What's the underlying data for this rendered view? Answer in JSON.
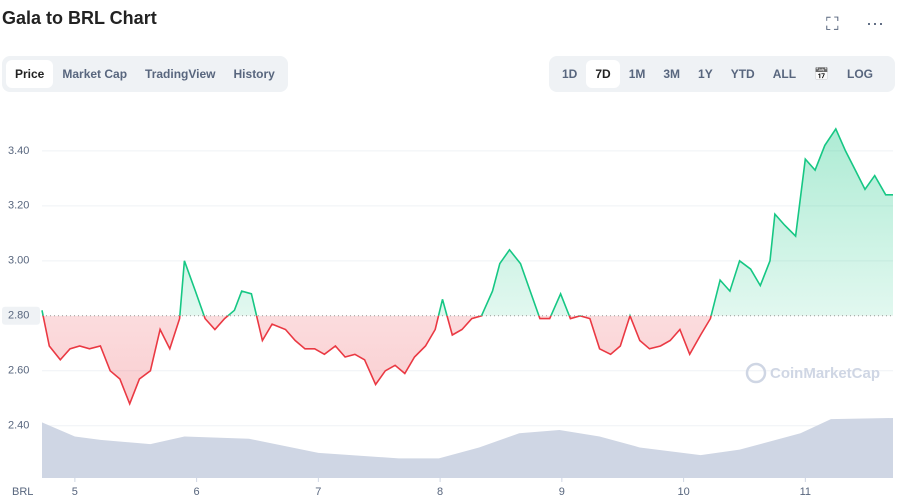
{
  "ui": {
    "tabs": [
      "Price",
      "Market Cap",
      "TradingView",
      "History"
    ],
    "ranges": [
      "1D",
      "7D",
      "1M",
      "3M",
      "1Y",
      "YTD",
      "ALL"
    ],
    "log": "LOG",
    "watermark": "CoinMarketCap"
  },
  "chart_data": {
    "type": "line",
    "title": "Gala to BRL Chart",
    "x_label": "BRL",
    "x": [
      4.73,
      4.79,
      4.88,
      4.96,
      5.04,
      5.12,
      5.21,
      5.29,
      5.37,
      5.45,
      5.53,
      5.62,
      5.7,
      5.78,
      5.86,
      5.9,
      5.99,
      6.07,
      6.15,
      6.23,
      6.31,
      6.37,
      6.45,
      6.54,
      6.62,
      6.73,
      6.81,
      6.89,
      6.97,
      7.05,
      7.14,
      7.22,
      7.3,
      7.38,
      7.47,
      7.55,
      7.63,
      7.71,
      7.79,
      7.88,
      7.96,
      8.02,
      8.1,
      8.18,
      8.26,
      8.34,
      8.43,
      8.49,
      8.57,
      8.66,
      8.74,
      8.82,
      8.9,
      8.99,
      9.07,
      9.15,
      9.23,
      9.31,
      9.4,
      9.48,
      9.56,
      9.64,
      9.72,
      9.81,
      9.89,
      9.97,
      10.05,
      10.14,
      10.22,
      10.3,
      10.38,
      10.46,
      10.55,
      10.63,
      10.71,
      10.75,
      10.83,
      10.92,
      11.0,
      11.08,
      11.16,
      11.25,
      11.33,
      11.41,
      11.49,
      11.57,
      11.66,
      11.72
    ],
    "series": [
      {
        "name": "Price",
        "color_up": "#16c784",
        "color_down": "#ea3943",
        "values": [
          2.82,
          2.69,
          2.64,
          2.68,
          2.69,
          2.68,
          2.69,
          2.6,
          2.57,
          2.48,
          2.57,
          2.6,
          2.75,
          2.68,
          2.79,
          3.0,
          2.89,
          2.79,
          2.75,
          2.79,
          2.82,
          2.89,
          2.88,
          2.71,
          2.77,
          2.75,
          2.71,
          2.68,
          2.68,
          2.66,
          2.69,
          2.65,
          2.66,
          2.64,
          2.55,
          2.6,
          2.62,
          2.59,
          2.65,
          2.69,
          2.75,
          2.86,
          2.73,
          2.75,
          2.79,
          2.8,
          2.89,
          2.99,
          3.04,
          2.99,
          2.89,
          2.79,
          2.79,
          2.88,
          2.79,
          2.8,
          2.79,
          2.68,
          2.66,
          2.69,
          2.8,
          2.71,
          2.68,
          2.69,
          2.71,
          2.75,
          2.66,
          2.73,
          2.79,
          2.93,
          2.89,
          3.0,
          2.97,
          2.91,
          3.0,
          3.17,
          3.13,
          3.09,
          3.37,
          3.33,
          3.42,
          3.48,
          3.4,
          3.33,
          3.26,
          3.31,
          3.24,
          3.24
        ]
      }
    ],
    "baseline": {
      "value": 2.8,
      "label": "2.80"
    },
    "volume": {
      "color": "#cfd6e4",
      "x": [
        4.73,
        5.0,
        5.21,
        5.62,
        5.9,
        6.43,
        7.0,
        7.66,
        7.99,
        8.32,
        8.65,
        8.98,
        9.31,
        9.64,
        10.14,
        10.46,
        10.96,
        11.21,
        11.72
      ],
      "values": [
        51,
        38,
        35,
        31,
        38,
        36,
        23,
        18,
        18,
        28,
        41,
        44,
        38,
        28,
        21,
        26,
        41,
        54,
        55
      ]
    },
    "xlim": [
      4.73,
      11.72
    ],
    "xticks": [
      5,
      6,
      7,
      8,
      9,
      10,
      11
    ],
    "ylim": [
      2.21,
      3.585
    ],
    "yticks": [
      {
        "value": 2.4,
        "label": "2.40"
      },
      {
        "value": 2.6,
        "label": "2.60"
      },
      {
        "value": 3.0,
        "label": "3.00"
      },
      {
        "value": 3.2,
        "label": "3.20"
      },
      {
        "value": 3.4,
        "label": "3.40"
      }
    ],
    "grid": true
  }
}
